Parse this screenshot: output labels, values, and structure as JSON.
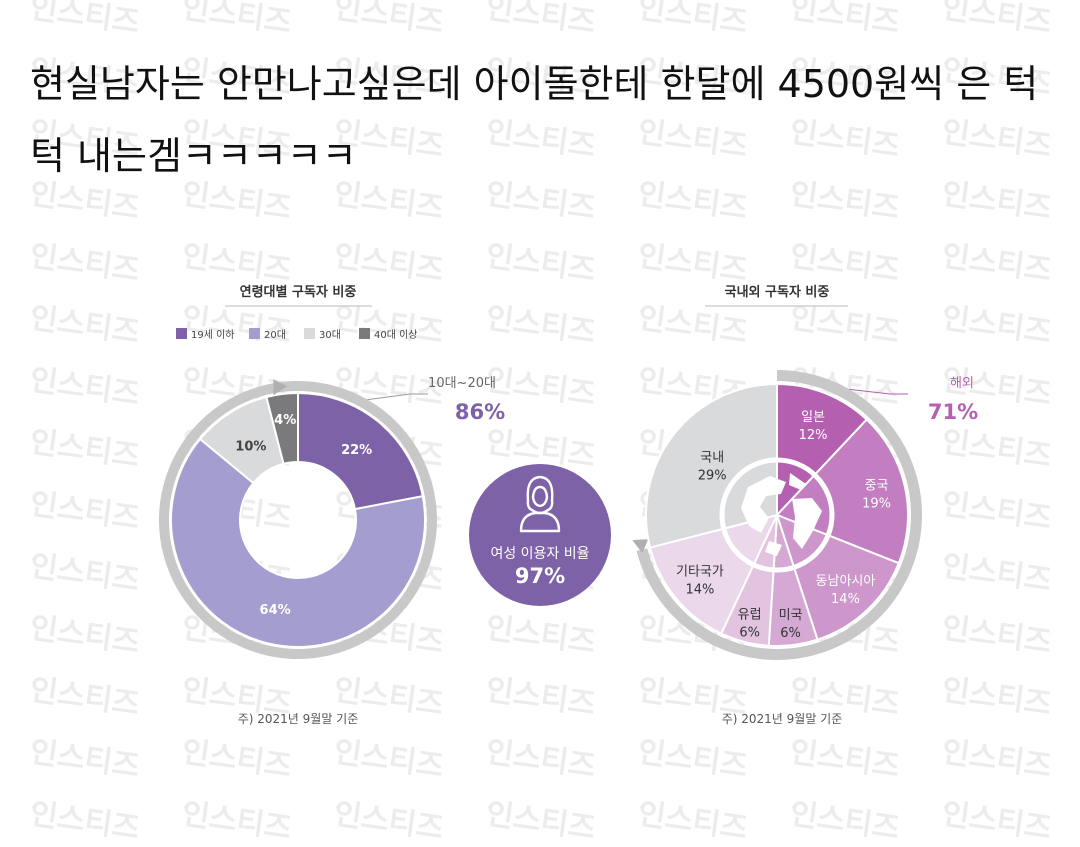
{
  "post": {
    "headline": "현실남자는 안만나고싶은데 아이돌한테 한달에 4500원씩 은 턱턱 내는겜ㅋㅋㅋㅋㅋ",
    "watermark": "인스티즈"
  },
  "chart_data": [
    {
      "type": "pie",
      "title": "연령대별 구독자 비중",
      "legend": [
        "19세 이하",
        "20대",
        "30대",
        "40대 이상"
      ],
      "legend_position": "top-left",
      "slices": [
        {
          "label": "19세 이하",
          "value": 22,
          "display": "22%",
          "color": "#7d62a8"
        },
        {
          "label": "20대",
          "value": 64,
          "display": "64%",
          "color": "#a49dd0"
        },
        {
          "label": "30대",
          "value": 10,
          "display": "10%",
          "color": "#d9dadc"
        },
        {
          "label": "40대 이상",
          "value": 4,
          "display": "4%",
          "color": "#7a7a7c"
        }
      ],
      "annotation": {
        "label": "10대~20대",
        "value": "86%"
      },
      "footnote": "주) 2021년 9월말 기준"
    },
    {
      "type": "pie",
      "title": "국내외 구독자 비중",
      "slices": [
        {
          "label": "일본",
          "value": 12,
          "display": "12%",
          "color": "#b45fb0"
        },
        {
          "label": "중국",
          "value": 19,
          "display": "19%",
          "color": "#c27ec0"
        },
        {
          "label": "동남아시아",
          "value": 14,
          "display": "14%",
          "color": "#cd97cb"
        },
        {
          "label": "미국",
          "value": 6,
          "display": "6%",
          "color": "#d6a9d4"
        },
        {
          "label": "유럽",
          "value": 6,
          "display": "6%",
          "color": "#e2c3e0"
        },
        {
          "label": "기타국가",
          "value": 14,
          "display": "14%",
          "color": "#ecd8eb"
        },
        {
          "label": "국내",
          "value": 29,
          "display": "29%",
          "color": "#d9dadc"
        }
      ],
      "annotation": {
        "label": "해외",
        "value": "71%"
      },
      "footnote": "주) 2021년 9월말 기준"
    }
  ],
  "center_badge": {
    "label": "여성 이용자 비율",
    "value": "97%",
    "color": "#7d62a8"
  },
  "colors": {
    "arc_band": "#c8c8c8",
    "arc_band_dark": "#b0b0b0",
    "globe": "#ffffff"
  }
}
